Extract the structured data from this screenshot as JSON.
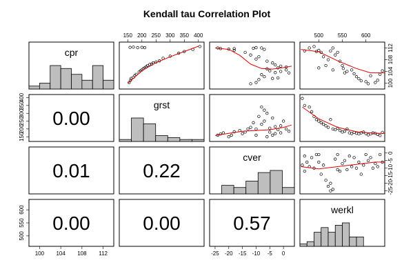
{
  "chart_data": {
    "type": "scatter",
    "kind": "correlation-matrix",
    "title": "Kendall tau Correlation Plot",
    "method": "kendall",
    "variables": [
      "cpr",
      "grst",
      "cver",
      "werkl"
    ],
    "coefficients": [
      {
        "row": "grst",
        "col": "cpr",
        "value": "0.00"
      },
      {
        "row": "cver",
        "col": "cpr",
        "value": "0.01"
      },
      {
        "row": "cver",
        "col": "grst",
        "value": "0.22"
      },
      {
        "row": "werkl",
        "col": "cpr",
        "value": "0.00"
      },
      {
        "row": "werkl",
        "col": "grst",
        "value": "0.00"
      },
      {
        "row": "werkl",
        "col": "cver",
        "value": "0.57"
      }
    ],
    "axes": {
      "cpr": {
        "range": [
          98,
          114
        ],
        "ticks": [
          100,
          104,
          108,
          112
        ]
      },
      "grst": {
        "range": [
          120,
          420
        ],
        "ticks": [
          150,
          200,
          250,
          300,
          350,
          400
        ]
      },
      "cver": {
        "range": [
          -27,
          4
        ],
        "ticks": [
          -25,
          -20,
          -15,
          -10,
          -5,
          0
        ]
      },
      "werkl": {
        "range": [
          460,
          640
        ],
        "ticks": [
          500,
          550,
          600
        ]
      }
    },
    "tick_sides": {
      "bottom": [
        "cpr",
        "cver"
      ],
      "top": [
        "grst",
        "werkl"
      ],
      "left": [
        "grst",
        "werkl"
      ],
      "right": [
        "cpr",
        "cver"
      ]
    },
    "histograms": {
      "cpr": {
        "breaks": [
          98,
          100,
          102,
          104,
          106,
          108,
          110,
          112,
          114
        ],
        "counts": [
          1,
          2,
          8,
          7,
          5,
          3,
          8,
          3
        ]
      },
      "grst": {
        "breaks": [
          100,
          150,
          200,
          250,
          300,
          350,
          400,
          450
        ],
        "counts": [
          1,
          12,
          9,
          3,
          2,
          1,
          1
        ]
      },
      "cver": {
        "breaks": [
          -30,
          -25,
          -20,
          -15,
          -10,
          -5,
          0,
          5
        ],
        "counts": [
          0,
          4,
          3,
          6,
          10,
          11,
          3
        ]
      },
      "werkl": {
        "breaks": [
          460,
          475,
          490,
          505,
          520,
          535,
          550,
          565,
          580,
          595,
          610,
          625,
          640
        ],
        "counts": [
          1,
          2,
          6,
          8,
          6,
          9,
          10,
          4,
          4,
          0,
          0,
          0
        ]
      }
    },
    "pairs": {
      "x_grst_y_cpr": {
        "points": [
          [
            155,
            100.2
          ],
          [
            160,
            101
          ],
          [
            162,
            101.6
          ],
          [
            170,
            102
          ],
          [
            175,
            102.6
          ],
          [
            180,
            103
          ],
          [
            190,
            103.8
          ],
          [
            195,
            104.2
          ],
          [
            200,
            104.5
          ],
          [
            205,
            105
          ],
          [
            210,
            105.2
          ],
          [
            215,
            105.6
          ],
          [
            220,
            106
          ],
          [
            228,
            106.4
          ],
          [
            235,
            106.5
          ],
          [
            240,
            106.9
          ],
          [
            250,
            107.2
          ],
          [
            262,
            107.6
          ],
          [
            275,
            108.5
          ],
          [
            300,
            109.2
          ],
          [
            330,
            110.2
          ],
          [
            350,
            110.8
          ],
          [
            380,
            111.5
          ],
          [
            405,
            112.5
          ],
          [
            158,
            112.2
          ],
          [
            170,
            112.3
          ],
          [
            185,
            112.1
          ],
          [
            200,
            112.2
          ],
          [
            210,
            112.1
          ]
        ],
        "smooth": [
          [
            150,
            99.9
          ],
          [
            200,
            104.2
          ],
          [
            250,
            107
          ],
          [
            300,
            109
          ],
          [
            350,
            110.8
          ],
          [
            400,
            112.6
          ]
        ]
      },
      "x_cver_y_cpr": {
        "points": [
          [
            -24,
            112
          ],
          [
            -23,
            111.8
          ],
          [
            -20,
            111.6
          ],
          [
            -18,
            111.8
          ],
          [
            -11,
            111.9
          ],
          [
            -10,
            112.1
          ],
          [
            -8,
            112
          ],
          [
            -7,
            111.5
          ],
          [
            -18,
            111.2
          ],
          [
            -14,
            110.5
          ],
          [
            -12,
            109.6
          ],
          [
            -9,
            109
          ],
          [
            -10,
            108.2
          ],
          [
            -6,
            107.5
          ],
          [
            -4,
            106.9
          ],
          [
            -3,
            106.2
          ],
          [
            -1,
            105.8
          ],
          [
            1,
            105.5
          ],
          [
            -2,
            105.2
          ],
          [
            -6,
            104.9
          ],
          [
            -5,
            104.2
          ],
          [
            -3,
            103.6
          ],
          [
            -1,
            104
          ],
          [
            2,
            103.5
          ],
          [
            -8,
            102.9
          ],
          [
            -7,
            102.2
          ],
          [
            -4,
            101.6
          ],
          [
            -9,
            101.2
          ],
          [
            -10,
            100.2
          ],
          [
            -12,
            99.8
          ],
          [
            -2,
            101.8
          ],
          [
            1,
            104.5
          ]
        ],
        "smooth": [
          [
            -25,
            112
          ],
          [
            -20,
            111.5
          ],
          [
            -16,
            109.5
          ],
          [
            -12,
            106.5
          ],
          [
            -8,
            105
          ],
          [
            -4,
            104.8
          ],
          [
            0,
            105.3
          ],
          [
            3,
            105.8
          ]
        ]
      },
      "x_werkl_y_cpr": {
        "points": [
          [
            470,
            111
          ],
          [
            480,
            112
          ],
          [
            490,
            112.5
          ],
          [
            495,
            110.8
          ],
          [
            500,
            111.2
          ],
          [
            505,
            110.5
          ],
          [
            510,
            109
          ],
          [
            520,
            108
          ],
          [
            525,
            111
          ],
          [
            530,
            112
          ],
          [
            535,
            109.6
          ],
          [
            540,
            110.5
          ],
          [
            545,
            107.5
          ],
          [
            550,
            106
          ],
          [
            552,
            105
          ],
          [
            560,
            104
          ],
          [
            570,
            104.5
          ],
          [
            575,
            103.2
          ],
          [
            580,
            102.2
          ],
          [
            585,
            101.5
          ],
          [
            590,
            100.8
          ],
          [
            600,
            100.5
          ],
          [
            605,
            99.8
          ],
          [
            610,
            102.5
          ],
          [
            620,
            100.2
          ],
          [
            625,
            101
          ],
          [
            630,
            103
          ],
          [
            635,
            104.2
          ],
          [
            500,
            105.2
          ],
          [
            515,
            106
          ],
          [
            530,
            104.5
          ],
          [
            555,
            103.5
          ]
        ],
        "smooth": [
          [
            462,
            111.5
          ],
          [
            500,
            110.7
          ],
          [
            540,
            107.6
          ],
          [
            580,
            105
          ],
          [
            610,
            103.5
          ],
          [
            640,
            103.5
          ]
        ]
      },
      "x_cver_y_grst": {
        "points": [
          [
            -24,
            160
          ],
          [
            -23,
            168
          ],
          [
            -22,
            175
          ],
          [
            -18,
            182
          ],
          [
            -16,
            190
          ],
          [
            -15,
            170
          ],
          [
            -13,
            200
          ],
          [
            -12,
            210
          ],
          [
            -11,
            240
          ],
          [
            -10,
            200
          ],
          [
            -9,
            280
          ],
          [
            -8,
            230
          ],
          [
            -8,
            340
          ],
          [
            -7,
            320
          ],
          [
            -7,
            250
          ],
          [
            -6,
            300
          ],
          [
            -5,
            205
          ],
          [
            -5,
            180
          ],
          [
            -4,
            270
          ],
          [
            -3,
            215
          ],
          [
            -3,
            170
          ],
          [
            -2,
            195
          ],
          [
            -1,
            220
          ],
          [
            0,
            250
          ],
          [
            1,
            200
          ],
          [
            2,
            185
          ],
          [
            -20,
            150
          ],
          [
            -19,
            160
          ],
          [
            -14,
            180
          ],
          [
            -10,
            160
          ],
          [
            -6,
            150
          ],
          [
            -4,
            160
          ],
          [
            -1,
            175
          ]
        ],
        "smooth": [
          [
            -25,
            158
          ],
          [
            -20,
            172
          ],
          [
            -15,
            185
          ],
          [
            -10,
            190
          ],
          [
            -5,
            195
          ],
          [
            0,
            210
          ],
          [
            3,
            225
          ]
        ]
      },
      "x_werkl_y_grst": {
        "points": [
          [
            465,
            395
          ],
          [
            470,
            350
          ],
          [
            480,
            340
          ],
          [
            485,
            310
          ],
          [
            490,
            280
          ],
          [
            495,
            260
          ],
          [
            500,
            250
          ],
          [
            505,
            240
          ],
          [
            510,
            230
          ],
          [
            515,
            220
          ],
          [
            520,
            210
          ],
          [
            525,
            260
          ],
          [
            530,
            200
          ],
          [
            535,
            195
          ],
          [
            540,
            205
          ],
          [
            545,
            190
          ],
          [
            550,
            180
          ],
          [
            555,
            185
          ],
          [
            560,
            200
          ],
          [
            565,
            175
          ],
          [
            570,
            170
          ],
          [
            575,
            178
          ],
          [
            580,
            172
          ],
          [
            585,
            168
          ],
          [
            590,
            175
          ],
          [
            595,
            180
          ],
          [
            600,
            170
          ],
          [
            605,
            162
          ],
          [
            610,
            168
          ],
          [
            615,
            175
          ],
          [
            620,
            172
          ],
          [
            625,
            165
          ],
          [
            630,
            158
          ],
          [
            635,
            178
          ]
        ],
        "smooth": [
          [
            465,
            340
          ],
          [
            500,
            265
          ],
          [
            540,
            210
          ],
          [
            580,
            182
          ],
          [
            620,
            172
          ],
          [
            640,
            172
          ]
        ]
      },
      "x_werkl_y_cver": {
        "points": [
          [
            465,
            -8
          ],
          [
            470,
            -12
          ],
          [
            475,
            -6
          ],
          [
            480,
            -9
          ],
          [
            485,
            -3
          ],
          [
            490,
            -10
          ],
          [
            495,
            -1
          ],
          [
            500,
            -6
          ],
          [
            505,
            -14
          ],
          [
            510,
            -8
          ],
          [
            515,
            -18
          ],
          [
            520,
            -22
          ],
          [
            525,
            -20
          ],
          [
            530,
            -24
          ],
          [
            535,
            -4
          ],
          [
            540,
            -1
          ],
          [
            545,
            -12
          ],
          [
            550,
            -7
          ],
          [
            555,
            -5
          ],
          [
            560,
            -11
          ],
          [
            565,
            -2
          ],
          [
            570,
            -9
          ],
          [
            575,
            -3
          ],
          [
            580,
            -10
          ],
          [
            585,
            -6
          ],
          [
            590,
            -14
          ],
          [
            595,
            -8
          ],
          [
            600,
            -1
          ],
          [
            605,
            -5
          ],
          [
            610,
            -3
          ],
          [
            615,
            -10
          ],
          [
            620,
            -7
          ],
          [
            625,
            -9
          ],
          [
            630,
            -1
          ],
          [
            635,
            -6
          ],
          [
            470,
            -2
          ],
          [
            500,
            -1
          ],
          [
            525,
            -25
          ],
          [
            540,
            -11
          ]
        ],
        "smooth": [
          [
            462,
            -9
          ],
          [
            500,
            -10.5
          ],
          [
            540,
            -9
          ],
          [
            580,
            -7.5
          ],
          [
            620,
            -6
          ],
          [
            640,
            -6
          ]
        ]
      }
    }
  }
}
